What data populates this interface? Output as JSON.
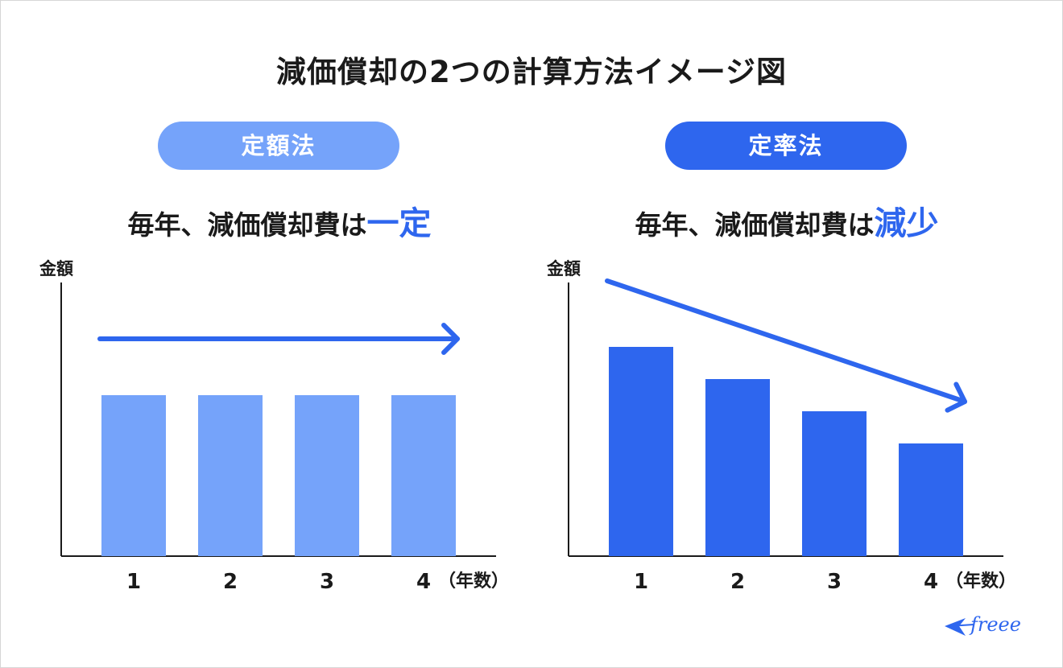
{
  "title": "減価償却の2つの計算方法イメージ図",
  "colors": {
    "light_blue": "#75a3fa",
    "dark_blue": "#2e66ee",
    "axis": "#1a1a1a"
  },
  "chart_data": [
    {
      "type": "bar",
      "method": "定額法",
      "subtitle_prefix": "毎年、減価償却費は",
      "subtitle_highlight": "一定",
      "ylabel": "金額",
      "xlabel": "（年数）",
      "categories": [
        "1",
        "2",
        "3",
        "4"
      ],
      "values": [
        5,
        5,
        5,
        5
      ],
      "ylim": [
        0,
        8.5
      ],
      "trend": "flat",
      "color": "#75a3fa"
    },
    {
      "type": "bar",
      "method": "定率法",
      "subtitle_prefix": "毎年、減価償却費は",
      "subtitle_highlight": "減少",
      "ylabel": "金額",
      "xlabel": "（年数）",
      "categories": [
        "1",
        "2",
        "3",
        "4"
      ],
      "values": [
        6.5,
        5.5,
        4.5,
        3.5
      ],
      "ylim": [
        0,
        8.5
      ],
      "trend": "decreasing",
      "color": "#2e66ee"
    }
  ],
  "logo": {
    "text": "freee",
    "icon": "bird-icon"
  }
}
